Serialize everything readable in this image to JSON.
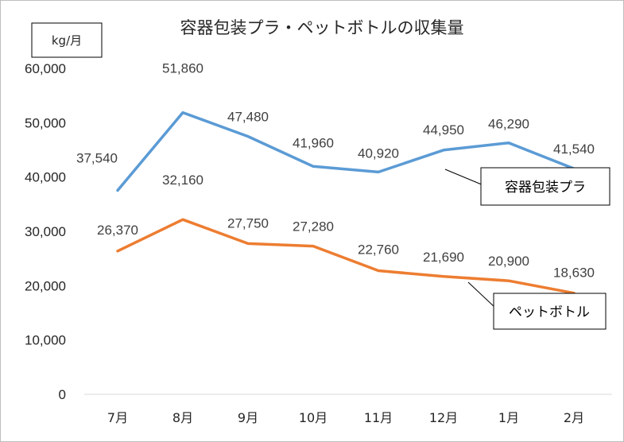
{
  "chart_data": {
    "type": "line",
    "title": "容器包装プラ・ペットボトルの収集量",
    "unit_label": "kg/月",
    "categories": [
      "7月",
      "8月",
      "9月",
      "10月",
      "11月",
      "12月",
      "1月",
      "2月"
    ],
    "ylim": [
      0,
      60000
    ],
    "yticks": [
      0,
      10000,
      20000,
      30000,
      40000,
      50000,
      60000
    ],
    "ytick_labels": [
      "0",
      "10,000",
      "20,000",
      "30,000",
      "40,000",
      "50,000",
      "60,000"
    ],
    "grid": false,
    "series": [
      {
        "name": "容器包装プラ",
        "color": "#5b9bd5",
        "values": [
          37540,
          51860,
          47480,
          41960,
          40920,
          44950,
          46290,
          41540
        ],
        "labels": [
          "37,540",
          "51,860",
          "47,480",
          "41,960",
          "40,920",
          "44,950",
          "46,290",
          "41,540"
        ]
      },
      {
        "name": "ペットボトル",
        "color": "#ed7d31",
        "values": [
          26370,
          32160,
          27750,
          27280,
          22760,
          21690,
          20900,
          18630
        ],
        "labels": [
          "26,370",
          "32,160",
          "27,750",
          "27,280",
          "22,760",
          "21,690",
          "20,900",
          "18,630"
        ]
      }
    ]
  }
}
